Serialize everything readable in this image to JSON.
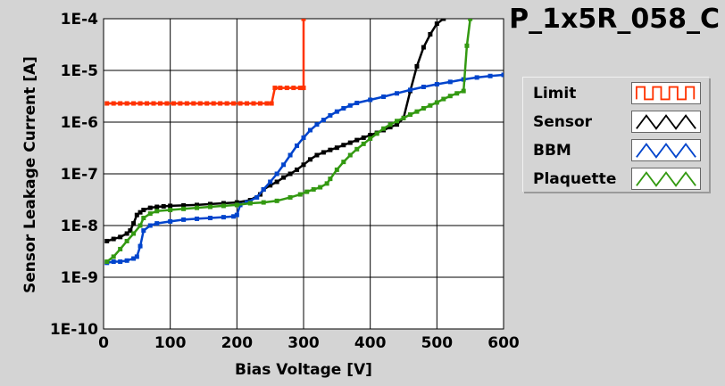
{
  "chart_data": {
    "type": "line",
    "title": "P_1x5R_058_C",
    "xlabel": "Bias Voltage [V]",
    "ylabel": "Sensor Leakage Current [A]",
    "xlim": [
      0,
      600
    ],
    "ylim": [
      1e-10,
      0.0001
    ],
    "yscale": "log",
    "grid": true,
    "legend_position": "right",
    "x_ticks": [
      0,
      100,
      200,
      300,
      400,
      500,
      600
    ],
    "x_tick_labels": [
      "0",
      "100",
      "200",
      "300",
      "400",
      "500",
      "600"
    ],
    "y_ticks": [
      1e-10,
      1e-09,
      1e-08,
      1e-07,
      1e-06,
      1e-05,
      0.0001
    ],
    "y_tick_labels": [
      "1E-10",
      "1E-9",
      "1E-8",
      "1E-7",
      "1E-6",
      "1E-5",
      "1E-4"
    ],
    "series": [
      {
        "name": "Limit",
        "color": "#ff3300",
        "points": [
          [
            5,
            2.3e-06
          ],
          [
            15,
            2.3e-06
          ],
          [
            25,
            2.3e-06
          ],
          [
            35,
            2.3e-06
          ],
          [
            45,
            2.3e-06
          ],
          [
            55,
            2.3e-06
          ],
          [
            65,
            2.3e-06
          ],
          [
            75,
            2.3e-06
          ],
          [
            85,
            2.3e-06
          ],
          [
            95,
            2.3e-06
          ],
          [
            105,
            2.3e-06
          ],
          [
            115,
            2.3e-06
          ],
          [
            125,
            2.3e-06
          ],
          [
            135,
            2.3e-06
          ],
          [
            145,
            2.3e-06
          ],
          [
            155,
            2.3e-06
          ],
          [
            165,
            2.3e-06
          ],
          [
            175,
            2.3e-06
          ],
          [
            185,
            2.3e-06
          ],
          [
            195,
            2.3e-06
          ],
          [
            205,
            2.3e-06
          ],
          [
            215,
            2.3e-06
          ],
          [
            225,
            2.3e-06
          ],
          [
            235,
            2.3e-06
          ],
          [
            245,
            2.3e-06
          ],
          [
            252,
            2.3e-06
          ],
          [
            257,
            4.6e-06
          ],
          [
            265,
            4.6e-06
          ],
          [
            275,
            4.6e-06
          ],
          [
            285,
            4.6e-06
          ],
          [
            295,
            4.6e-06
          ],
          [
            300,
            4.6e-06
          ],
          [
            300,
            0.0001
          ]
        ]
      },
      {
        "name": "Sensor",
        "color": "#000000",
        "points": [
          [
            5,
            5e-09
          ],
          [
            15,
            5.5e-09
          ],
          [
            25,
            6e-09
          ],
          [
            35,
            7e-09
          ],
          [
            40,
            8e-09
          ],
          [
            45,
            1.1e-08
          ],
          [
            50,
            1.6e-08
          ],
          [
            55,
            1.8e-08
          ],
          [
            60,
            2e-08
          ],
          [
            70,
            2.2e-08
          ],
          [
            80,
            2.3e-08
          ],
          [
            90,
            2.35e-08
          ],
          [
            100,
            2.4e-08
          ],
          [
            120,
            2.45e-08
          ],
          [
            140,
            2.5e-08
          ],
          [
            160,
            2.6e-08
          ],
          [
            180,
            2.7e-08
          ],
          [
            200,
            2.8e-08
          ],
          [
            220,
            3.1e-08
          ],
          [
            235,
            4e-08
          ],
          [
            240,
            5e-08
          ],
          [
            250,
            6e-08
          ],
          [
            260,
            7e-08
          ],
          [
            270,
            8.5e-08
          ],
          [
            280,
            1e-07
          ],
          [
            290,
            1.2e-07
          ],
          [
            300,
            1.5e-07
          ],
          [
            310,
            1.9e-07
          ],
          [
            320,
            2.3e-07
          ],
          [
            330,
            2.6e-07
          ],
          [
            340,
            2.9e-07
          ],
          [
            350,
            3.2e-07
          ],
          [
            360,
            3.6e-07
          ],
          [
            370,
            4e-07
          ],
          [
            380,
            4.5e-07
          ],
          [
            390,
            5e-07
          ],
          [
            400,
            5.6e-07
          ],
          [
            410,
            6.2e-07
          ],
          [
            420,
            7e-07
          ],
          [
            430,
            8e-07
          ],
          [
            440,
            9e-07
          ],
          [
            450,
            1.2e-06
          ],
          [
            460,
            4e-06
          ],
          [
            470,
            1.2e-05
          ],
          [
            480,
            2.8e-05
          ],
          [
            490,
            5e-05
          ],
          [
            500,
            8e-05
          ],
          [
            510,
            0.0001
          ]
        ]
      },
      {
        "name": "BBM",
        "color": "#0044cc",
        "points": [
          [
            5,
            1.9e-09
          ],
          [
            15,
            2e-09
          ],
          [
            25,
            2e-09
          ],
          [
            35,
            2.1e-09
          ],
          [
            45,
            2.3e-09
          ],
          [
            50,
            2.5e-09
          ],
          [
            55,
            4e-09
          ],
          [
            60,
            8e-09
          ],
          [
            70,
            1e-08
          ],
          [
            80,
            1.1e-08
          ],
          [
            100,
            1.2e-08
          ],
          [
            120,
            1.3e-08
          ],
          [
            140,
            1.35e-08
          ],
          [
            160,
            1.4e-08
          ],
          [
            180,
            1.45e-08
          ],
          [
            195,
            1.5e-08
          ],
          [
            200,
            1.6e-08
          ],
          [
            205,
            2.5e-08
          ],
          [
            215,
            2.8e-08
          ],
          [
            230,
            3.5e-08
          ],
          [
            240,
            5e-08
          ],
          [
            250,
            7e-08
          ],
          [
            260,
            1e-07
          ],
          [
            270,
            1.5e-07
          ],
          [
            280,
            2.3e-07
          ],
          [
            290,
            3.5e-07
          ],
          [
            300,
            5e-07
          ],
          [
            310,
            7e-07
          ],
          [
            320,
            9e-07
          ],
          [
            330,
            1.1e-06
          ],
          [
            340,
            1.35e-06
          ],
          [
            350,
            1.6e-06
          ],
          [
            360,
            1.85e-06
          ],
          [
            370,
            2.1e-06
          ],
          [
            380,
            2.35e-06
          ],
          [
            400,
            2.7e-06
          ],
          [
            420,
            3.1e-06
          ],
          [
            440,
            3.6e-06
          ],
          [
            460,
            4.2e-06
          ],
          [
            480,
            4.8e-06
          ],
          [
            500,
            5.4e-06
          ],
          [
            520,
            6e-06
          ],
          [
            540,
            6.7e-06
          ],
          [
            560,
            7.3e-06
          ],
          [
            580,
            7.8e-06
          ],
          [
            600,
            8.2e-06
          ]
        ]
      },
      {
        "name": "Plaquette",
        "color": "#339911",
        "points": [
          [
            5,
            2e-09
          ],
          [
            15,
            2.5e-09
          ],
          [
            25,
            3.5e-09
          ],
          [
            35,
            5e-09
          ],
          [
            45,
            7e-09
          ],
          [
            55,
            1e-08
          ],
          [
            60,
            1.4e-08
          ],
          [
            70,
            1.7e-08
          ],
          [
            80,
            1.9e-08
          ],
          [
            100,
            2e-08
          ],
          [
            120,
            2.1e-08
          ],
          [
            140,
            2.2e-08
          ],
          [
            160,
            2.3e-08
          ],
          [
            180,
            2.4e-08
          ],
          [
            200,
            2.5e-08
          ],
          [
            220,
            2.7e-08
          ],
          [
            240,
            2.8e-08
          ],
          [
            260,
            3e-08
          ],
          [
            280,
            3.5e-08
          ],
          [
            295,
            4e-08
          ],
          [
            305,
            4.5e-08
          ],
          [
            315,
            5e-08
          ],
          [
            325,
            5.5e-08
          ],
          [
            335,
            6.5e-08
          ],
          [
            340,
            8e-08
          ],
          [
            350,
            1.2e-07
          ],
          [
            360,
            1.7e-07
          ],
          [
            370,
            2.3e-07
          ],
          [
            380,
            3e-07
          ],
          [
            390,
            3.8e-07
          ],
          [
            400,
            4.8e-07
          ],
          [
            410,
            6e-07
          ],
          [
            420,
            7.5e-07
          ],
          [
            430,
            9e-07
          ],
          [
            440,
            1.05e-06
          ],
          [
            450,
            1.2e-06
          ],
          [
            460,
            1.4e-06
          ],
          [
            470,
            1.6e-06
          ],
          [
            480,
            1.85e-06
          ],
          [
            490,
            2.1e-06
          ],
          [
            500,
            2.4e-06
          ],
          [
            510,
            2.8e-06
          ],
          [
            520,
            3.2e-06
          ],
          [
            530,
            3.6e-06
          ],
          [
            540,
            4e-06
          ],
          [
            545,
            3e-05
          ],
          [
            550,
            0.0001
          ]
        ]
      }
    ]
  }
}
